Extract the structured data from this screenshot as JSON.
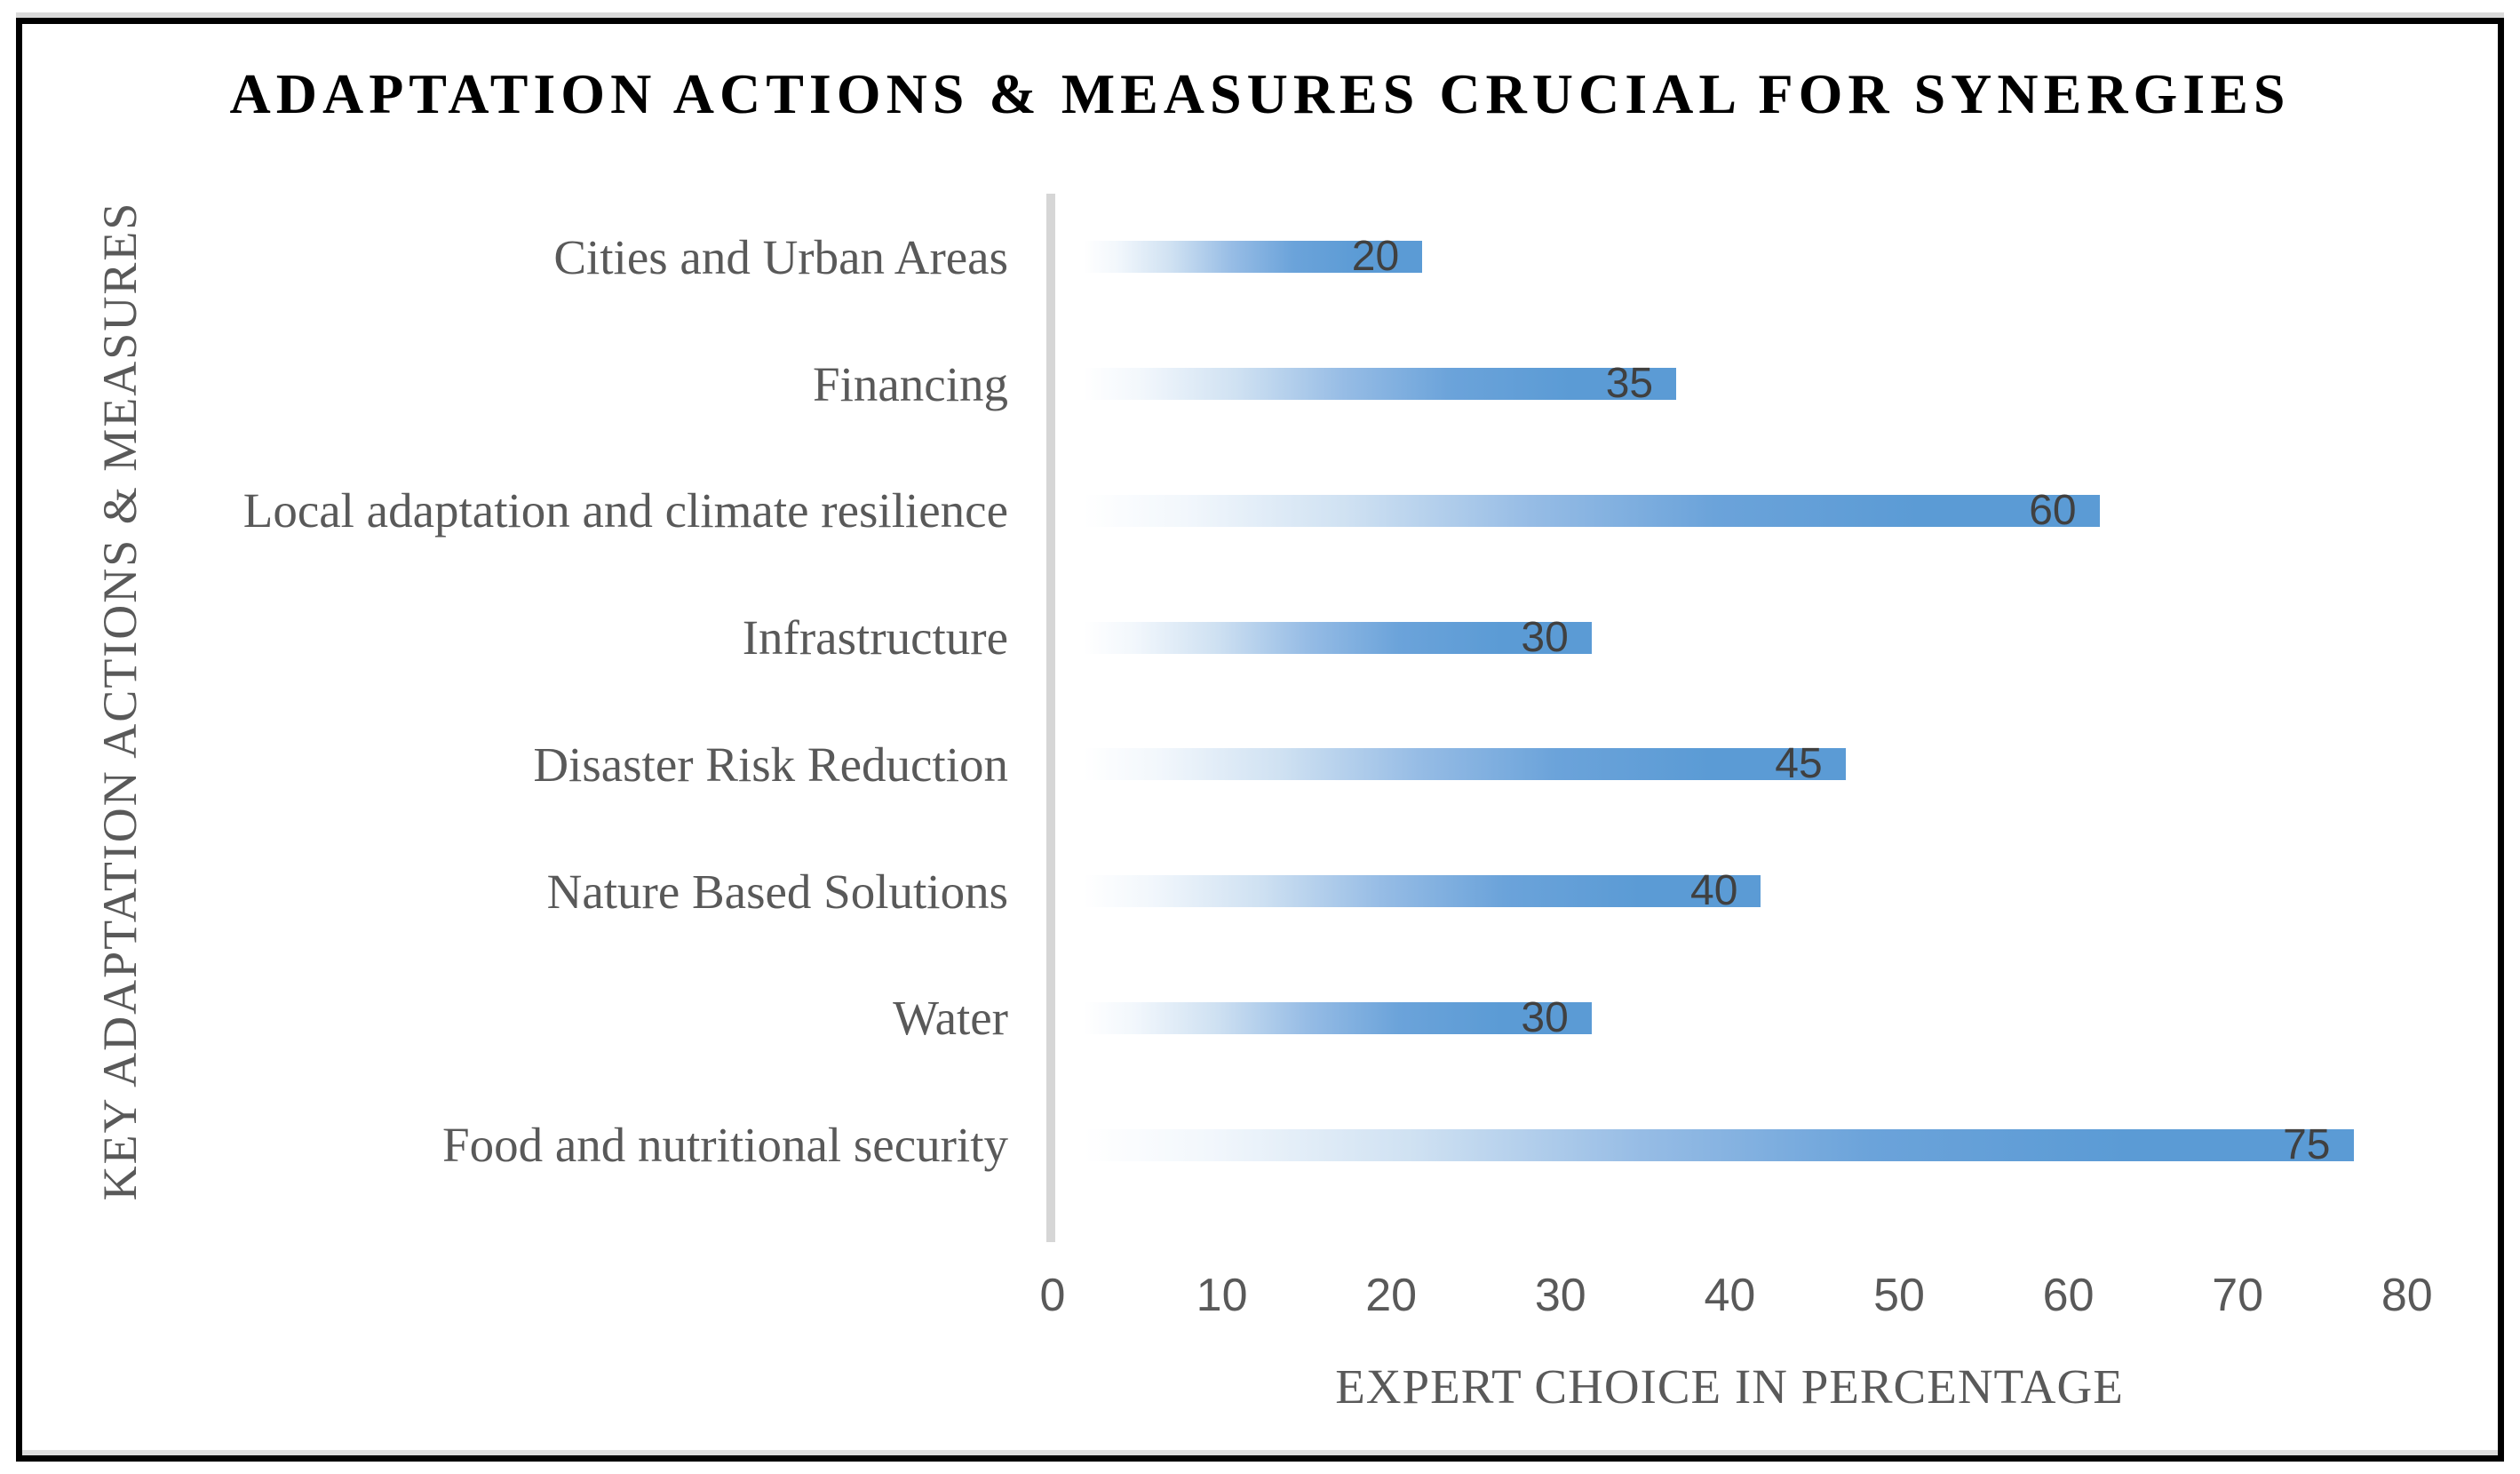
{
  "chart_data": {
    "type": "bar",
    "orientation": "horizontal",
    "title": "ADAPTATION ACTIONS & MEASURES CRUCIAL FOR SYNERGIES",
    "xlabel": "EXPERT CHOICE IN PERCENTAGE",
    "ylabel": "KEY ADAPTATION ACTIONS & MEASURES",
    "categories": [
      "Cities and Urban Areas",
      "Financing",
      "Local adaptation and climate resilience",
      "Infrastructure",
      "Disaster Risk Reduction",
      "Nature Based Solutions",
      "Water",
      "Food and nutritional security"
    ],
    "values": [
      20,
      35,
      60,
      30,
      45,
      40,
      30,
      75
    ],
    "xlim": [
      0,
      80
    ],
    "xticks": [
      0,
      10,
      20,
      30,
      40,
      50,
      60,
      70,
      80
    ],
    "grid": false,
    "legend": "none",
    "data_labels_position": "inside-end",
    "colors": {
      "bar_end": "#5b9bd5",
      "bar_start": "#ffffff",
      "axis_line": "#d6d6d6",
      "tick_label": "#595959",
      "category_label": "#595959",
      "value_label": "#404040",
      "title": "#000000",
      "frame_border": "#000000"
    }
  }
}
